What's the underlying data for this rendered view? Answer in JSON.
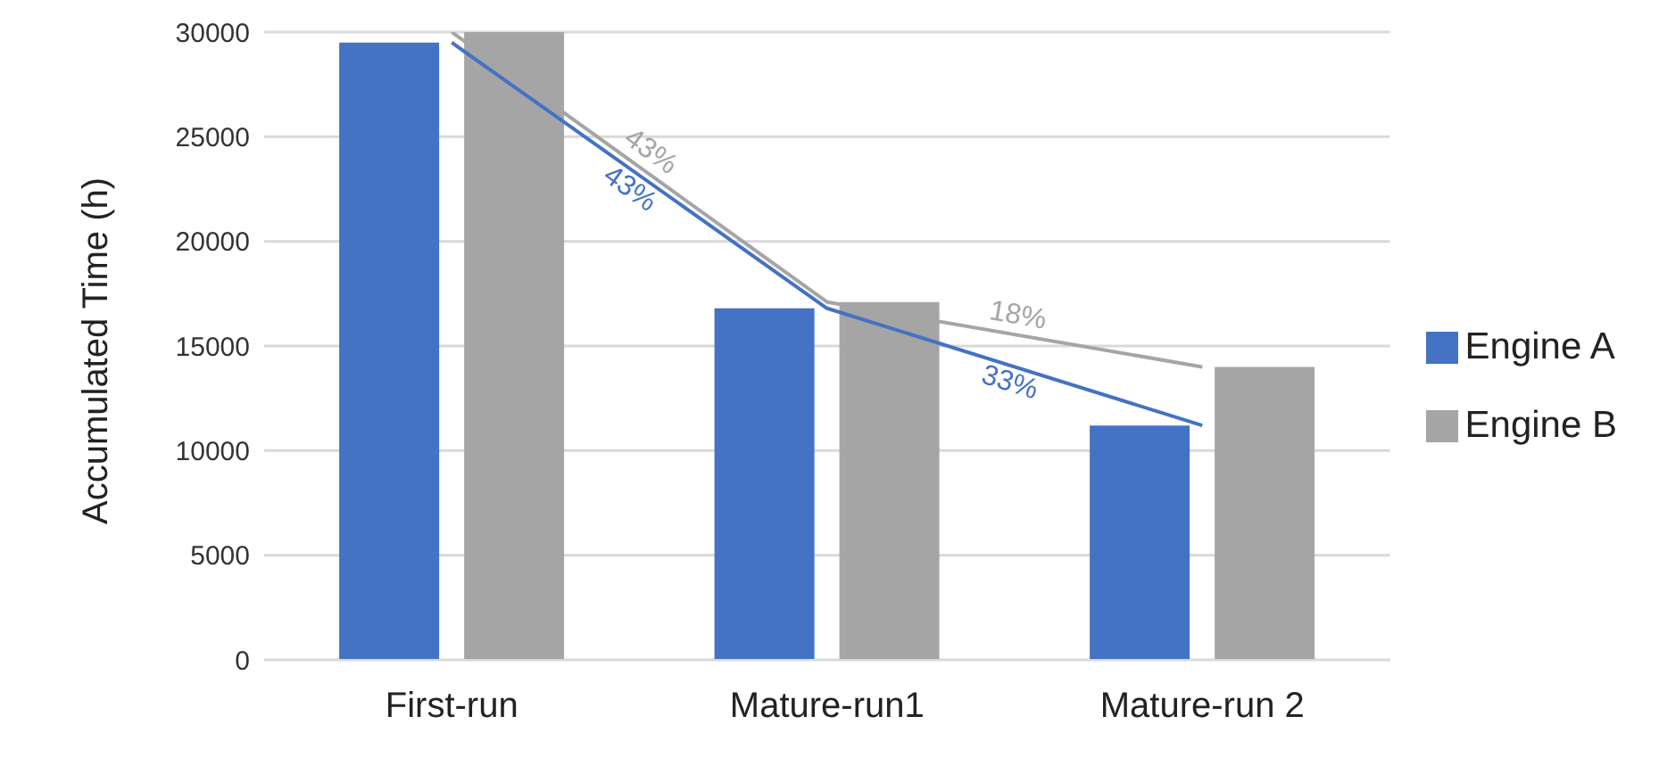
{
  "chart_data": {
    "type": "bar",
    "ylabel": "Accumulated Time (h)",
    "categories": [
      "First-run",
      "Mature-run1",
      "Mature-run 2"
    ],
    "series": [
      {
        "name": "Engine A",
        "color": "#4472c4",
        "values": [
          29500,
          16800,
          11200
        ]
      },
      {
        "name": "Engine B",
        "color": "#a5a5a5",
        "values": [
          30000,
          17100,
          14000
        ]
      },
      {
        "type": "line",
        "color": "#4472c4",
        "values": [
          29500,
          16800,
          11200
        ]
      },
      {
        "type": "line",
        "color": "#a5a5a5",
        "values": [
          30000,
          17100,
          14000
        ]
      }
    ],
    "annotations": [
      "43%",
      "43%",
      "33%",
      "18%"
    ],
    "ylim": [
      0,
      30000
    ],
    "yticks": [
      0,
      5000,
      10000,
      15000,
      20000,
      25000,
      30000
    ],
    "grid": "y",
    "legend": "right",
    "marker": "none"
  }
}
